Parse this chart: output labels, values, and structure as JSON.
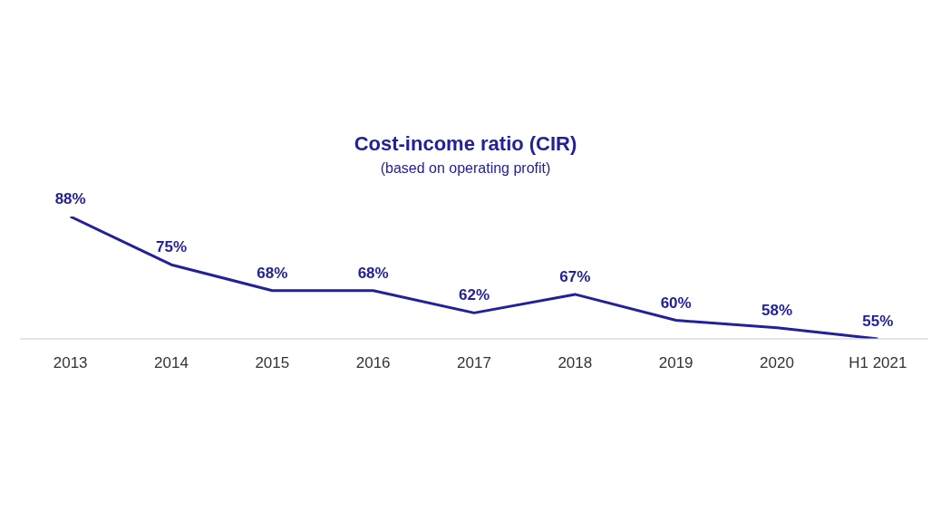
{
  "chart_data": {
    "type": "line",
    "title": "Cost-income ratio (CIR)",
    "subtitle": "(based on operating profit)",
    "categories": [
      "2013",
      "2014",
      "2015",
      "2016",
      "2017",
      "2018",
      "2019",
      "2020",
      "H1 2021"
    ],
    "series": [
      {
        "color": "#22219a",
        "values": [
          88,
          75,
          68,
          68,
          62,
          67,
          60,
          58,
          55
        ],
        "value_labels": [
          "88%",
          "75%",
          "68%",
          "68%",
          "62%",
          "67%",
          "60%",
          "58%",
          "55%"
        ]
      }
    ],
    "marker": "none",
    "line_style": "solid",
    "grid": false,
    "legend": false,
    "tick_labels": "x"
  }
}
